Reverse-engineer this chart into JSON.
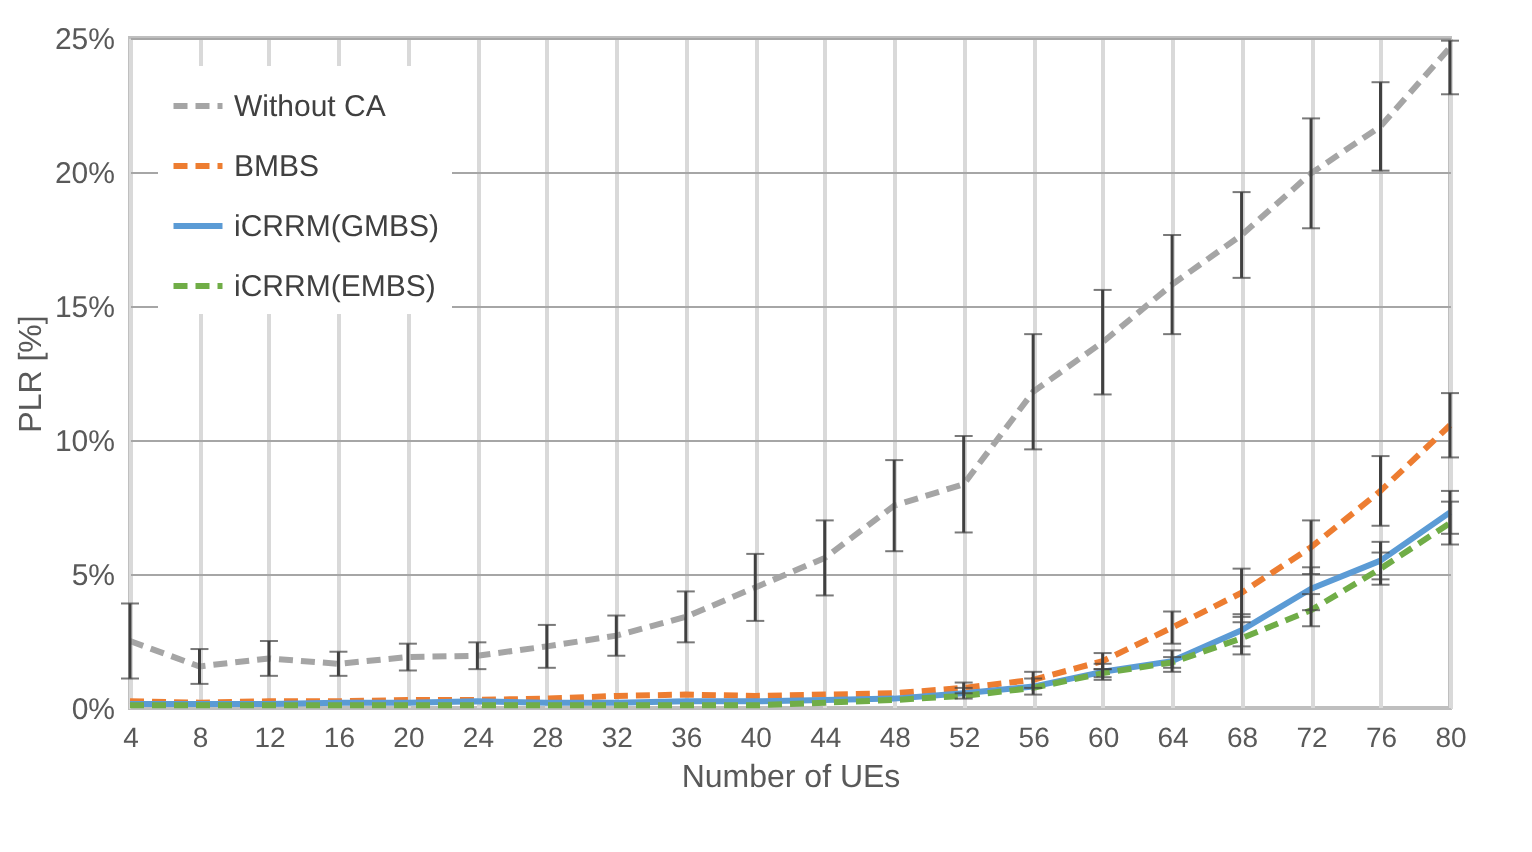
{
  "chart_data": {
    "type": "line",
    "xlabel": "Number of UEs",
    "ylabel": "PLR [%]",
    "x": [
      4,
      8,
      12,
      16,
      20,
      24,
      28,
      32,
      36,
      40,
      44,
      48,
      52,
      56,
      60,
      64,
      68,
      72,
      76,
      80
    ],
    "xlim": [
      4,
      80
    ],
    "xticks": [
      4,
      8,
      12,
      16,
      20,
      24,
      28,
      32,
      36,
      40,
      44,
      48,
      52,
      56,
      60,
      64,
      68,
      72,
      76,
      80
    ],
    "ylim": [
      0,
      25
    ],
    "yticks": [
      {
        "value": 0,
        "label": "0%"
      },
      {
        "value": 5,
        "label": "5%"
      },
      {
        "value": 10,
        "label": "10%"
      },
      {
        "value": 15,
        "label": "15%"
      },
      {
        "value": 20,
        "label": "20%"
      },
      {
        "value": 25,
        "label": "25%"
      }
    ],
    "grid": true,
    "legend": "top left",
    "marker": "none",
    "series": [
      {
        "name": "Without CA",
        "color": "#a5a5a5",
        "line_style": "dashed",
        "values": [
          2.5,
          1.55,
          1.85,
          1.65,
          1.9,
          1.95,
          2.3,
          2.7,
          3.4,
          4.5,
          5.6,
          7.55,
          8.35,
          11.8,
          13.65,
          15.8,
          17.65,
          19.95,
          21.7,
          24.65
        ],
        "errors": [
          1.4,
          0.65,
          0.65,
          0.45,
          0.5,
          0.5,
          0.8,
          0.75,
          0.95,
          1.25,
          1.4,
          1.7,
          1.8,
          2.15,
          1.95,
          1.85,
          1.6,
          2.05,
          1.65,
          [
            22.9,
            24.9
          ]
        ]
      },
      {
        "name": "BMBS",
        "color": "#ed7d31",
        "line_style": "dashed",
        "values": [
          0.25,
          0.2,
          0.25,
          0.25,
          0.3,
          0.3,
          0.35,
          0.45,
          0.5,
          0.45,
          0.5,
          0.55,
          0.75,
          1.05,
          1.75,
          3.0,
          4.3,
          6.0,
          8.1,
          10.55
        ],
        "errors": [
          null,
          null,
          null,
          null,
          null,
          null,
          null,
          null,
          null,
          null,
          null,
          null,
          0.2,
          0.3,
          0.3,
          0.6,
          0.9,
          1.0,
          1.3,
          1.2
        ]
      },
      {
        "name": "iCRRM(GMBS)",
        "color": "#5b9bd5",
        "line_style": "solid",
        "values": [
          0.15,
          0.15,
          0.15,
          0.2,
          0.2,
          0.25,
          0.2,
          0.2,
          0.25,
          0.25,
          0.3,
          0.35,
          0.55,
          0.8,
          1.35,
          1.75,
          2.9,
          4.45,
          5.5,
          7.3
        ],
        "errors": [
          null,
          null,
          null,
          null,
          null,
          null,
          null,
          null,
          null,
          null,
          null,
          null,
          0.2,
          0.3,
          0.3,
          0.4,
          0.6,
          0.8,
          0.7,
          0.8
        ]
      },
      {
        "name": "iCRRM(EMBS)",
        "color": "#70ad47",
        "line_style": "dashed",
        "values": [
          0.1,
          0.1,
          0.1,
          0.1,
          0.1,
          0.1,
          0.1,
          0.1,
          0.1,
          0.1,
          0.2,
          0.3,
          0.45,
          0.75,
          1.3,
          1.7,
          2.6,
          3.65,
          5.2,
          6.9
        ],
        "errors": [
          null,
          null,
          null,
          null,
          null,
          null,
          null,
          null,
          null,
          null,
          null,
          null,
          null,
          null,
          0.15,
          0.2,
          0.6,
          0.6,
          0.6,
          0.8
        ]
      }
    ]
  }
}
